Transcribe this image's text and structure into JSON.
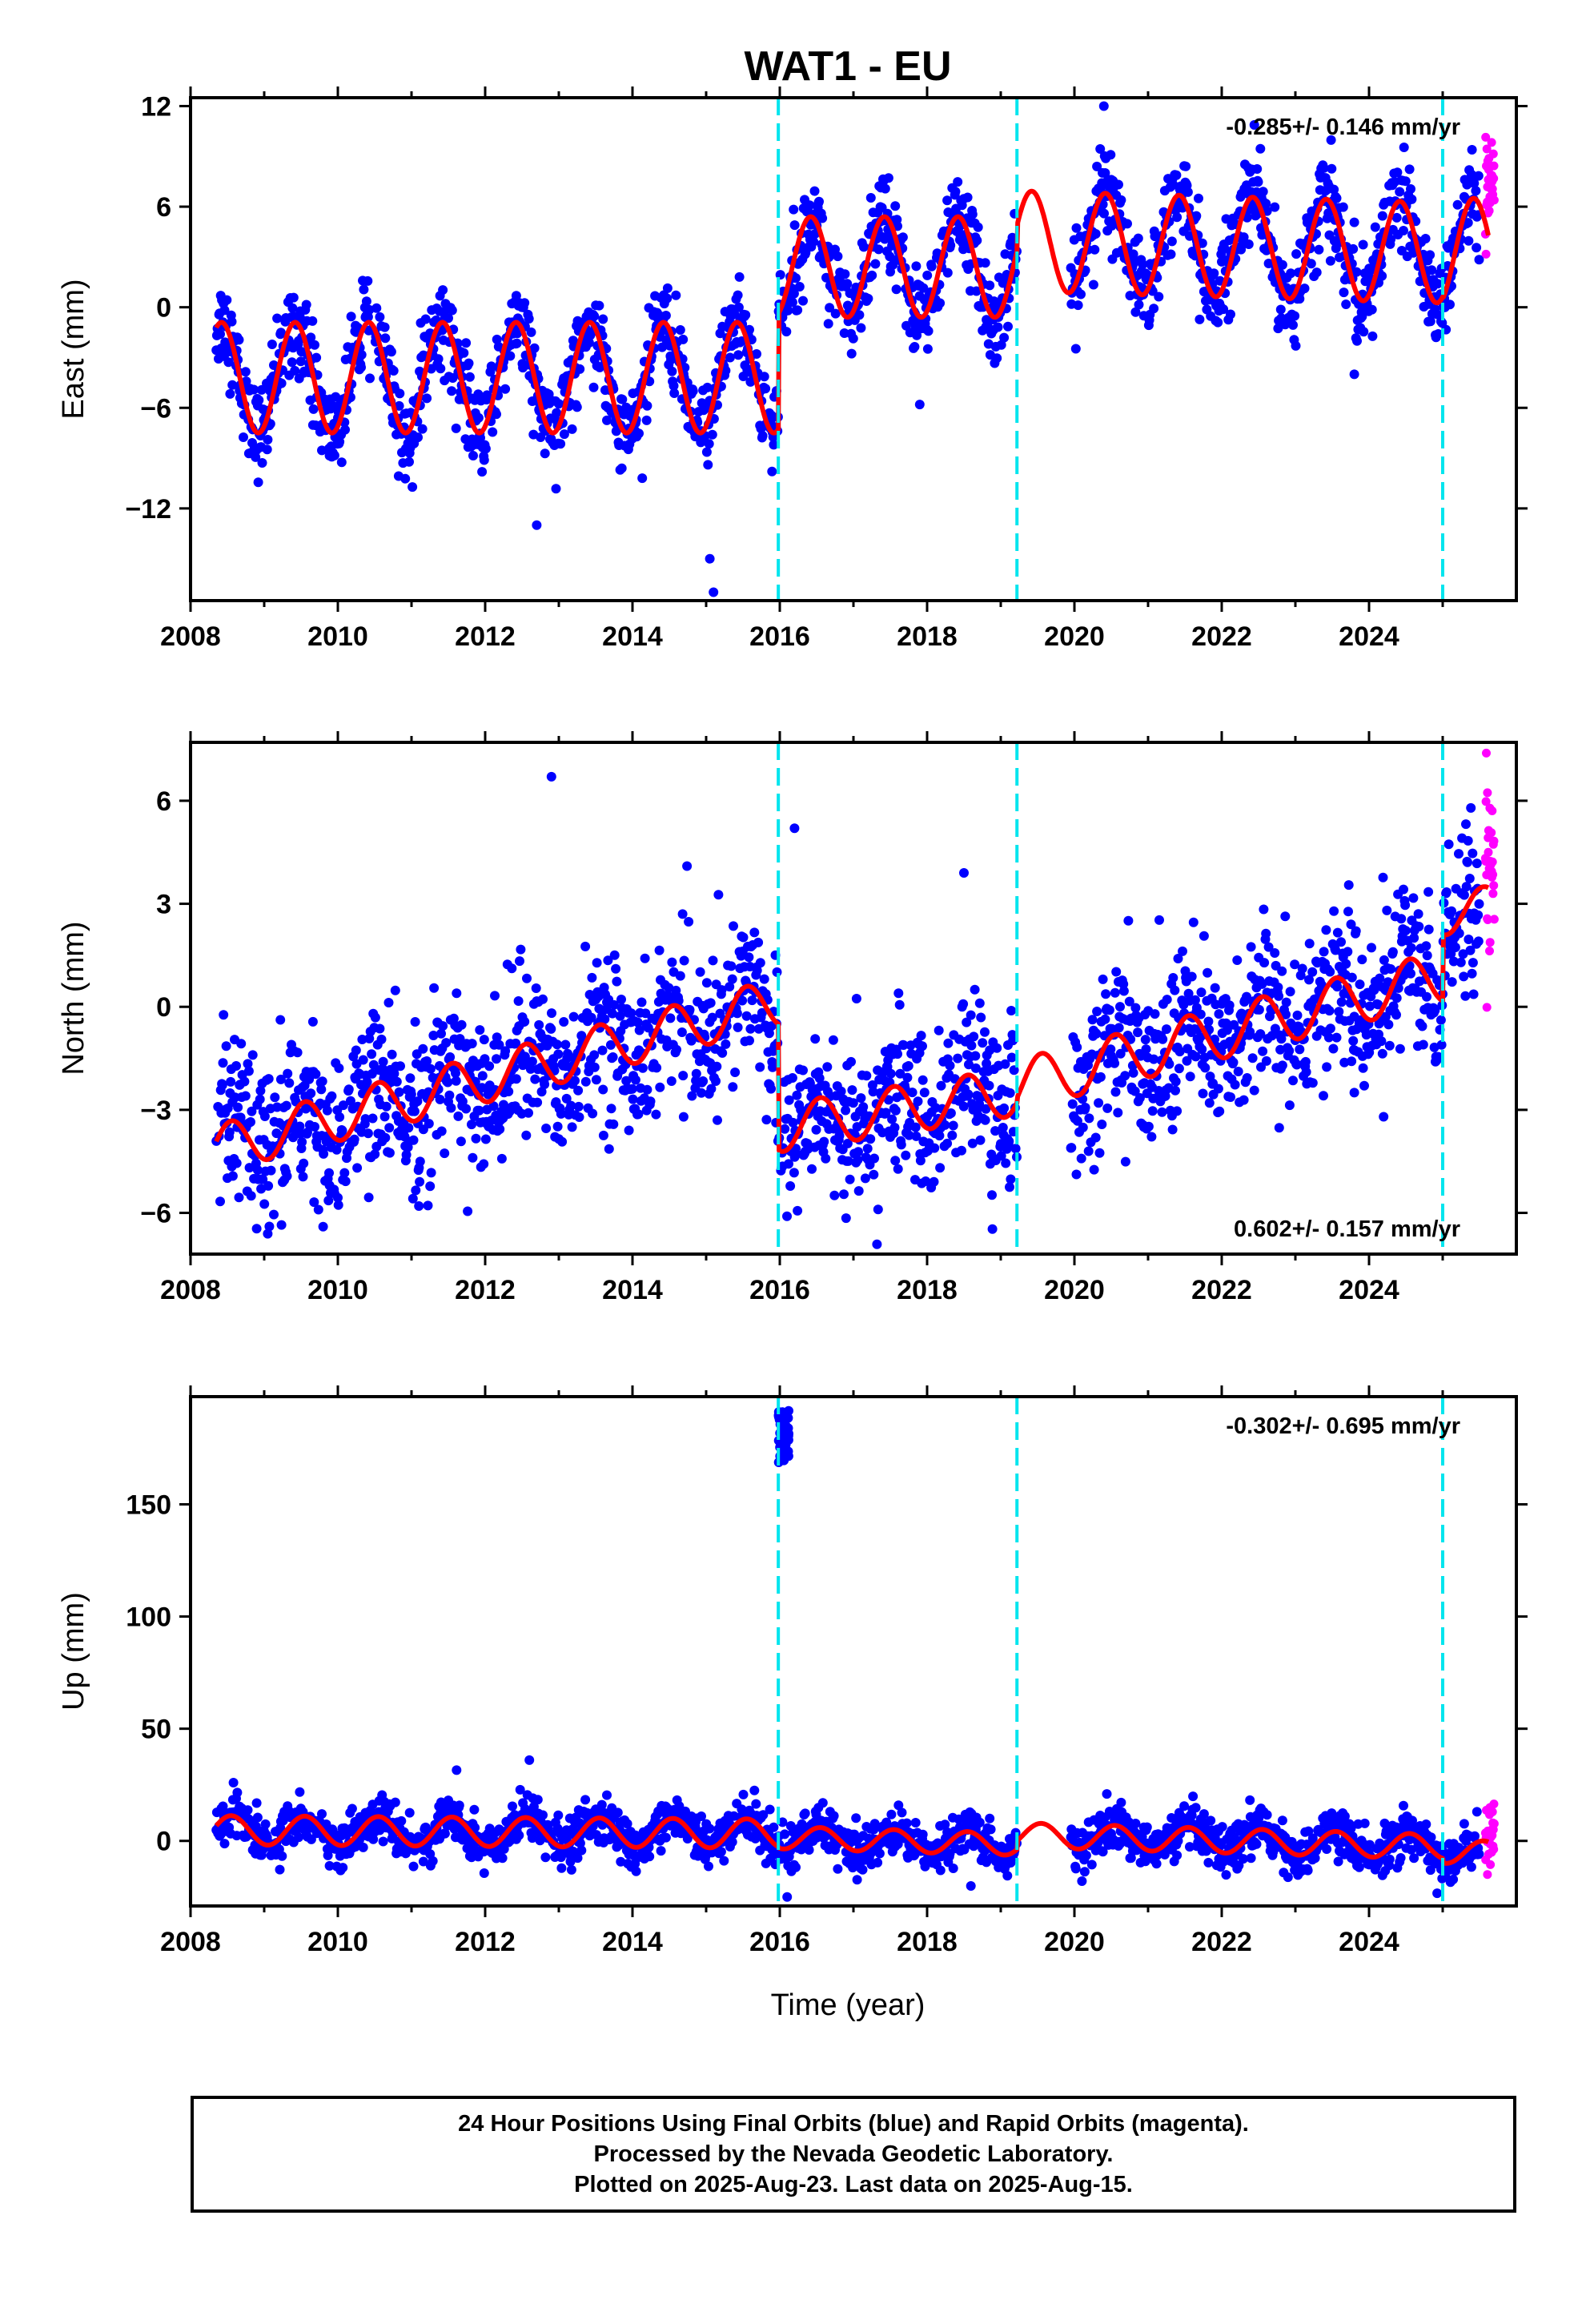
{
  "title": "WAT1 - EU",
  "xlabel": "Time (year)",
  "footer": {
    "line1": "24 Hour Positions Using Final Orbits (blue) and Rapid Orbits (magenta).",
    "line2": "Processed by the Nevada Geodetic Laboratory.",
    "line3": "Plotted on 2025-Aug-23. Last data on 2025-Aug-15."
  },
  "colors": {
    "final_orbits": "#0000ff",
    "rapid_orbits": "#ff00ff",
    "model_fit": "#ff0000",
    "event_lines": "#00e5ee",
    "axes": "#000000"
  },
  "chart_data": [
    {
      "type": "scatter",
      "panel": "east",
      "ylabel": "East (mm)",
      "rate_label": "-0.285+/- 0.146 mm/yr",
      "rate_label_position": "top-right",
      "xlim": [
        2008,
        2026
      ],
      "ylim": [
        -17.5,
        12.5
      ],
      "xticks": [
        2008,
        2010,
        2012,
        2014,
        2016,
        2018,
        2020,
        2022,
        2024
      ],
      "xtick_labels": [
        "2008",
        "2010",
        "2012",
        "2014",
        "2016",
        "2018",
        "2020",
        "2022",
        "2024"
      ],
      "yticks": [
        12,
        6,
        0,
        -6,
        -12
      ],
      "ytick_labels": [
        "12",
        "6",
        "0",
        "−6",
        "−12"
      ],
      "grid": false,
      "event_lines": [
        2015.98,
        2019.22,
        2025.0
      ],
      "data_span": [
        2008.35,
        2025.6
      ],
      "rapid_span": [
        2025.5,
        2025.62
      ],
      "scatter_sd": 1.3,
      "outliers": [
        {
          "x": 2020.4,
          "y": 12.0
        },
        {
          "x": 2015.1,
          "y": -17.0
        },
        {
          "x": 2015.05,
          "y": -15.0
        },
        {
          "x": 2012.7,
          "y": -13.0
        },
        {
          "x": 2017.9,
          "y": -5.8
        },
        {
          "x": 2023.8,
          "y": -4.0
        }
      ],
      "model": {
        "segments": [
          {
            "from": 2008.35,
            "to": 2015.98,
            "offset": -4.2,
            "trend": 0.0,
            "amp": 3.3
          },
          {
            "from": 2015.98,
            "to": 2019.22,
            "offset": 2.4,
            "trend": 0.0,
            "amp": 3.0
          },
          {
            "from": 2019.22,
            "to": 2025.0,
            "offset": 3.6,
            "trend": -0.12,
            "amp": 3.0
          },
          {
            "from": 2025.0,
            "to": 2025.62,
            "offset": 3.3,
            "trend": 0.0,
            "amp": 3.2
          }
        ],
        "peak_phase": 0.42
      }
    },
    {
      "type": "scatter",
      "panel": "north",
      "ylabel": "North (mm)",
      "rate_label": "0.602+/- 0.157 mm/yr",
      "rate_label_position": "bottom-right",
      "xlim": [
        2008,
        2026
      ],
      "ylim": [
        -7.2,
        7.7
      ],
      "xticks": [
        2008,
        2010,
        2012,
        2014,
        2016,
        2018,
        2020,
        2022,
        2024
      ],
      "xtick_labels": [
        "2008",
        "2010",
        "2012",
        "2014",
        "2016",
        "2018",
        "2020",
        "2022",
        "2024"
      ],
      "yticks": [
        6,
        3,
        0,
        -3,
        -6
      ],
      "ytick_labels": [
        "6",
        "3",
        "0",
        "−3",
        "−6"
      ],
      "grid": false,
      "event_lines": [
        2015.98,
        2019.22,
        2025.0
      ],
      "data_span": [
        2008.35,
        2025.6
      ],
      "rapid_span": [
        2025.5,
        2025.62
      ],
      "scatter_sd": 1.15,
      "outliers": [
        {
          "x": 2012.9,
          "y": 6.7
        },
        {
          "x": 2016.2,
          "y": 5.2
        },
        {
          "x": 2009.8,
          "y": -6.4
        },
        {
          "x": 2011.1,
          "y": -5.8
        },
        {
          "x": 2023.8,
          "y": -2.5
        },
        {
          "x": 2018.5,
          "y": 3.9
        }
      ],
      "model": {
        "segments": [
          {
            "from": 2008.35,
            "to": 2015.98,
            "offset": -2.0,
            "trend": 0.56,
            "amp": 0.7
          },
          {
            "from": 2015.98,
            "to": 2019.22,
            "offset": -3.0,
            "trend": 0.33,
            "amp": 0.7
          },
          {
            "from": 2019.22,
            "to": 2025.0,
            "offset": -0.7,
            "trend": 0.55,
            "amp": 0.75
          },
          {
            "from": 2025.0,
            "to": 2025.62,
            "offset": 2.8,
            "trend": 0.4,
            "amp": 0.6
          }
        ],
        "peak_phase": 0.55
      }
    },
    {
      "type": "scatter",
      "panel": "up",
      "ylabel": "Up (mm)",
      "rate_label": "-0.302+/- 0.695 mm/yr",
      "rate_label_position": "top-right",
      "xlabel": "Time (year)",
      "xlim": [
        2008,
        2026
      ],
      "ylim": [
        -29,
        198
      ],
      "xticks": [
        2008,
        2010,
        2012,
        2014,
        2016,
        2018,
        2020,
        2022,
        2024
      ],
      "xtick_labels": [
        "2008",
        "2010",
        "2012",
        "2014",
        "2016",
        "2018",
        "2020",
        "2022",
        "2024"
      ],
      "yticks": [
        150,
        100,
        50,
        0
      ],
      "ytick_labels": [
        "150",
        "100",
        "50",
        "0"
      ],
      "grid": false,
      "event_lines": [
        2015.98,
        2019.22,
        2025.0
      ],
      "data_span": [
        2008.35,
        2025.6
      ],
      "rapid_span": [
        2025.5,
        2025.62
      ],
      "scatter_sd": 5.0,
      "cluster": {
        "x_from": 2015.98,
        "x_to": 2016.12,
        "y_from": 168,
        "y_to": 192,
        "count": 45
      },
      "outliers": [
        {
          "x": 2012.6,
          "y": 36
        },
        {
          "x": 2016.1,
          "y": -25
        }
      ],
      "model": {
        "segments": [
          {
            "from": 2008.35,
            "to": 2015.98,
            "offset": 4.0,
            "trend": -0.2,
            "amp": 6.5
          },
          {
            "from": 2015.98,
            "to": 2019.22,
            "offset": 0.0,
            "trend": -0.9,
            "amp": 5.0
          },
          {
            "from": 2019.22,
            "to": 2025.0,
            "offset": 0.0,
            "trend": -0.9,
            "amp": 5.5
          },
          {
            "from": 2025.0,
            "to": 2025.62,
            "offset": -5.0,
            "trend": 0.0,
            "amp": 5.0
          }
        ],
        "peak_phase": 0.55
      }
    }
  ]
}
